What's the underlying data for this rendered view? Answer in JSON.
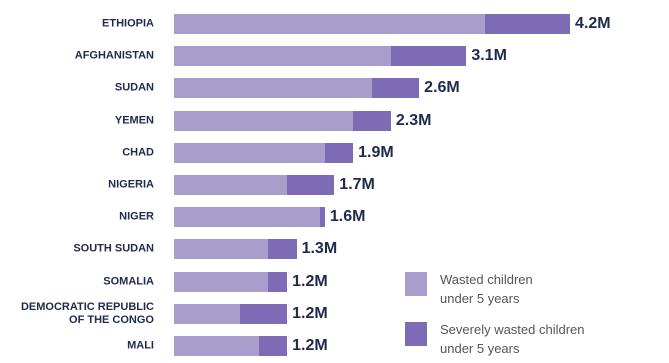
{
  "chart_data": {
    "type": "stacked-bar-horizontal",
    "categories": [
      "ETHIOPIA",
      "AFGHANISTAN",
      "SUDAN",
      "YEMEN",
      "CHAD",
      "NIGERIA",
      "NIGER",
      "SOUTH SUDAN",
      "SOMALIA",
      "DEMOCRATIC REPUBLIC\nOF THE CONGO",
      "MALI"
    ],
    "series": [
      {
        "name": "Wasted children\nunder 5 years",
        "color": "#a89dcb",
        "values": [
          3.3,
          2.3,
          2.1,
          1.9,
          1.6,
          1.2,
          1.55,
          1.0,
          1.0,
          0.7,
          0.9
        ]
      },
      {
        "name": "Severely wasted children\nunder 5 years",
        "color": "#7d6bb6",
        "values": [
          0.9,
          0.8,
          0.5,
          0.4,
          0.3,
          0.5,
          0.05,
          0.3,
          0.2,
          0.5,
          0.3
        ]
      }
    ],
    "totals": {
      "values": [
        4.2,
        3.1,
        2.6,
        2.3,
        1.9,
        1.7,
        1.6,
        1.3,
        1.2,
        1.2,
        1.2
      ],
      "value_labels": [
        "4.2M",
        "3.1M",
        "2.6M",
        "2.3M",
        "1.9M",
        "1.7M",
        "1.6M",
        "1.3M",
        "1.2M",
        "1.2M",
        "1.2M"
      ]
    },
    "legend": "bottom-right"
  }
}
